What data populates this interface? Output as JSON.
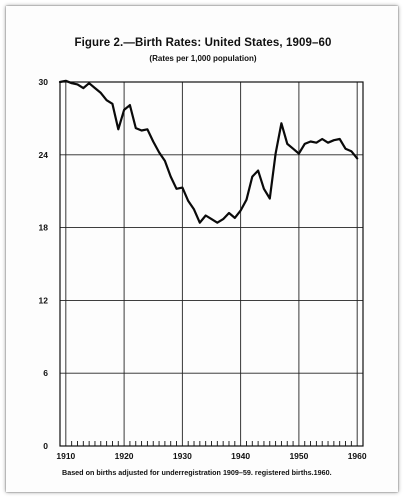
{
  "header": {
    "title": "Figure 2.—Birth Rates:  United States, 1909–60",
    "subtitle": "(Rates per 1,000 population)"
  },
  "footer": {
    "note": "Based on births adjusted for underregistration 1909–59. registered births.1960."
  },
  "chart_data": {
    "type": "line",
    "title": "Figure 2.—Birth Rates:  United States, 1909–60",
    "subtitle": "(Rates per 1,000 population)",
    "xlabel": "",
    "ylabel": "",
    "xlim": [
      1909,
      1961
    ],
    "ylim": [
      0,
      30
    ],
    "x_ticks": [
      1910,
      1920,
      1930,
      1940,
      1950,
      1960
    ],
    "y_ticks": [
      0,
      6,
      12,
      18,
      24,
      30
    ],
    "grid": true,
    "series": [
      {
        "x": [
          1909,
          1910,
          1911,
          1912,
          1913,
          1914,
          1915,
          1916,
          1917,
          1918,
          1919,
          1920,
          1921,
          1922,
          1923,
          1924,
          1925,
          1926,
          1927,
          1928,
          1929,
          1930,
          1931,
          1932,
          1933,
          1934,
          1935,
          1936,
          1937,
          1938,
          1939,
          1940,
          1941,
          1942,
          1943,
          1944,
          1945,
          1946,
          1947,
          1948,
          1949,
          1950,
          1951,
          1952,
          1953,
          1954,
          1955,
          1956,
          1957,
          1958,
          1959,
          1960
        ],
        "values": [
          30.0,
          30.1,
          29.9,
          29.8,
          29.5,
          29.9,
          29.5,
          29.1,
          28.5,
          28.2,
          26.1,
          27.7,
          28.1,
          26.2,
          26.0,
          26.1,
          25.1,
          24.2,
          23.5,
          22.2,
          21.2,
          21.3,
          20.2,
          19.5,
          18.4,
          19.0,
          18.7,
          18.4,
          18.7,
          19.2,
          18.8,
          19.4,
          20.3,
          22.2,
          22.7,
          21.2,
          20.4,
          24.1,
          26.6,
          24.9,
          24.5,
          24.1,
          24.9,
          25.1,
          25.0,
          25.3,
          25.0,
          25.2,
          25.3,
          24.5,
          24.3,
          23.7
        ]
      }
    ]
  }
}
